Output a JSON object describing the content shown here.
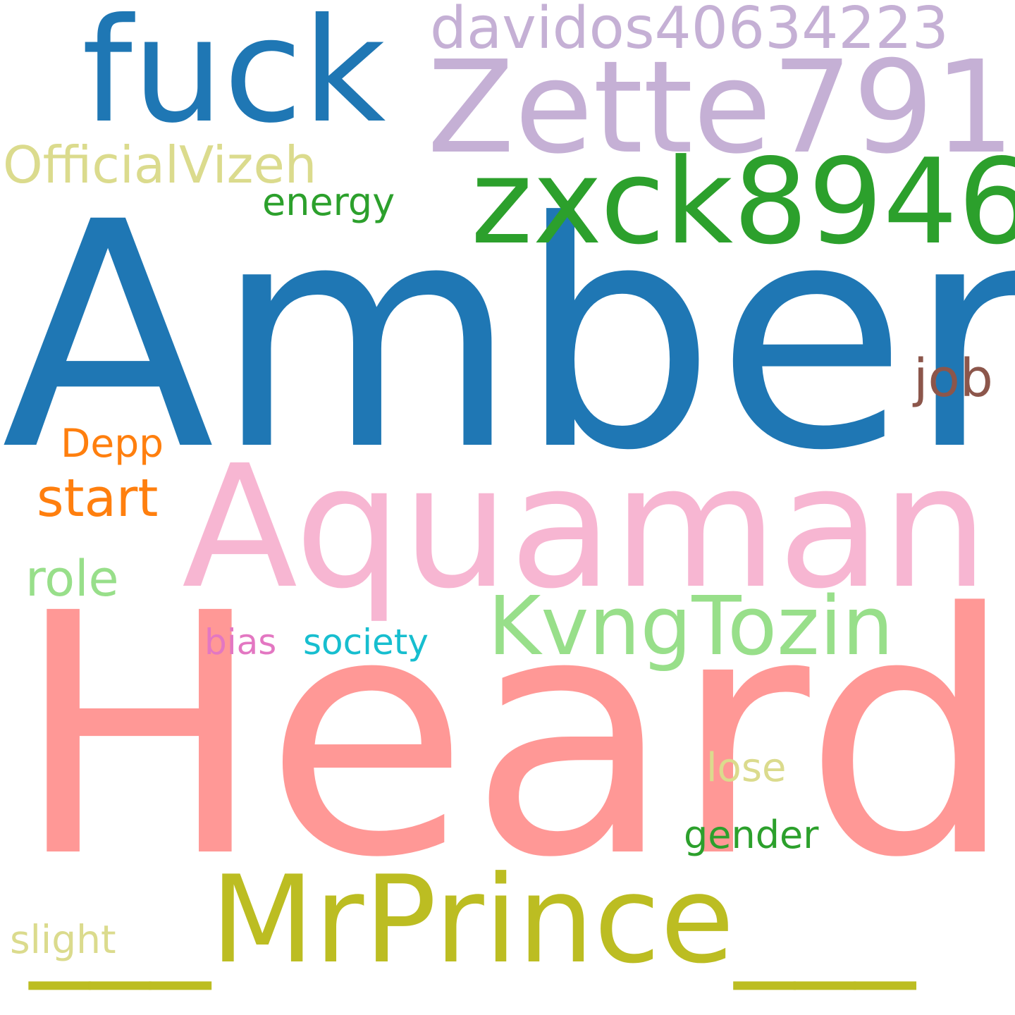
{
  "words": {
    "amber": {
      "text": "Amber",
      "color": "#1f77b4"
    },
    "heard": {
      "text": "Heard",
      "color": "#ff9896"
    },
    "aquaman": {
      "text": "Aquaman",
      "color": "#f7b6d2"
    },
    "mrprince": {
      "text": "___MrPrince___",
      "color": "#bcbd22"
    },
    "zette791": {
      "text": "Zette791",
      "color": "#c5b0d5"
    },
    "fuck": {
      "text": "fuck",
      "color": "#1f77b4"
    },
    "zxck8946": {
      "text": "zxck8946",
      "color": "#2ca02c"
    },
    "davidos": {
      "text": "davidos40634223",
      "color": "#c5b0d5"
    },
    "kvngtozin": {
      "text": "KvngTozin",
      "color": "#98df8a"
    },
    "officialvizeh": {
      "text": "OfficialVizeh",
      "color": "#dbdb8d"
    },
    "start": {
      "text": "start",
      "color": "#ff7f0e"
    },
    "role": {
      "text": "role",
      "color": "#98df8a"
    },
    "job": {
      "text": "job",
      "color": "#8c564b"
    },
    "depp": {
      "text": "Depp",
      "color": "#ff7f0e"
    },
    "energy": {
      "text": "energy",
      "color": "#2ca02c"
    },
    "society": {
      "text": "society",
      "color": "#17becf"
    },
    "bias": {
      "text": "bias",
      "color": "#e377c2"
    },
    "gender": {
      "text": "gender",
      "color": "#2ca02c"
    },
    "lose": {
      "text": "lose",
      "color": "#dbdb8d"
    },
    "slight": {
      "text": "slight",
      "color": "#dbdb8d"
    }
  }
}
